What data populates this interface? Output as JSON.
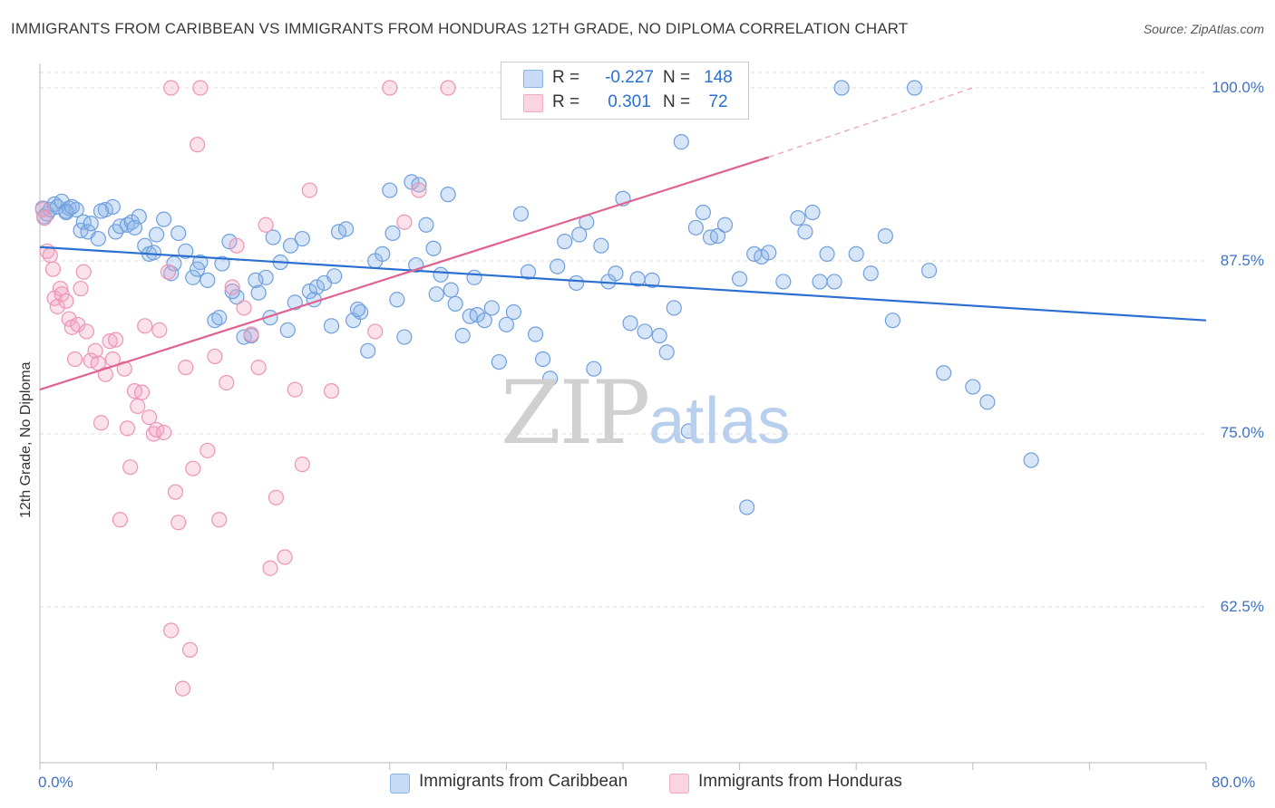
{
  "title": "IMMIGRANTS FROM CARIBBEAN VS IMMIGRANTS FROM HONDURAS 12TH GRADE, NO DIPLOMA CORRELATION CHART",
  "source": "Source: ZipAtlas.com",
  "watermark": {
    "zip": "ZIP",
    "atlas": "atlas"
  },
  "legend_stats": [
    {
      "r_label": "R =",
      "r_value": "-0.227",
      "n_label": "N =",
      "n_value": "148",
      "color": "#8ab4e8"
    },
    {
      "r_label": "R =",
      "r_value": "0.301",
      "n_label": "N =",
      "n_value": "72",
      "color": "#f2a9c2"
    }
  ],
  "chart_data": {
    "type": "scatter",
    "title": "IMMIGRANTS FROM CARIBBEAN VS IMMIGRANTS FROM HONDURAS 12TH GRADE, NO DIPLOMA CORRELATION CHART",
    "xlabel": "",
    "ylabel": "12th Grade, No Diploma",
    "xlim": [
      0,
      80
    ],
    "ylim": [
      50,
      102
    ],
    "x_tick_labels": [
      {
        "value": 0,
        "label": "0.0%"
      },
      {
        "value": 80,
        "label": "80.0%"
      }
    ],
    "y_tick_labels": [
      {
        "value": 100,
        "label": "100.0%"
      },
      {
        "value": 87.5,
        "label": "87.5%"
      },
      {
        "value": 75,
        "label": "75.0%"
      },
      {
        "value": 62.5,
        "label": "62.5%"
      }
    ],
    "grid": true,
    "legend_position": "bottom",
    "series": [
      {
        "name": "Immigrants from Caribbean",
        "color": "#8ab4e8",
        "line_color": "#2b6fd0",
        "trend": {
          "x": [
            0,
            80
          ],
          "y": [
            88.5,
            83.2
          ],
          "dashed_from": null
        },
        "points": [
          [
            0.2,
            91.3
          ],
          [
            0.3,
            90.7
          ],
          [
            0.5,
            90.9
          ],
          [
            0.7,
            91.2
          ],
          [
            1.0,
            91.6
          ],
          [
            1.2,
            91.4
          ],
          [
            1.5,
            91.8
          ],
          [
            1.8,
            91.1
          ],
          [
            2.0,
            91.3
          ],
          [
            2.5,
            91.2
          ],
          [
            2.8,
            89.7
          ],
          [
            3.0,
            90.3
          ],
          [
            3.3,
            89.6
          ],
          [
            4.0,
            89.1
          ],
          [
            4.5,
            91.2
          ],
          [
            5.0,
            91.4
          ],
          [
            5.2,
            89.6
          ],
          [
            5.5,
            90.0
          ],
          [
            6.0,
            90.1
          ],
          [
            6.3,
            90.3
          ],
          [
            6.8,
            90.7
          ],
          [
            7.2,
            88.6
          ],
          [
            7.5,
            88.0
          ],
          [
            8.0,
            89.4
          ],
          [
            8.5,
            90.5
          ],
          [
            9.0,
            86.6
          ],
          [
            9.5,
            89.5
          ],
          [
            10.0,
            88.2
          ],
          [
            10.5,
            86.3
          ],
          [
            11.0,
            87.4
          ],
          [
            11.5,
            86.1
          ],
          [
            12.0,
            83.2
          ],
          [
            12.3,
            83.4
          ],
          [
            12.5,
            87.3
          ],
          [
            13.0,
            88.9
          ],
          [
            13.5,
            84.9
          ],
          [
            14.0,
            82.0
          ],
          [
            14.5,
            82.1
          ],
          [
            15.0,
            85.2
          ],
          [
            15.5,
            86.3
          ],
          [
            16.0,
            89.2
          ],
          [
            16.5,
            87.4
          ],
          [
            17.0,
            82.5
          ],
          [
            17.5,
            84.5
          ],
          [
            18.0,
            89.1
          ],
          [
            18.5,
            85.3
          ],
          [
            19.0,
            85.6
          ],
          [
            19.5,
            85.9
          ],
          [
            20.0,
            82.8
          ],
          [
            20.5,
            89.6
          ],
          [
            21.0,
            89.8
          ],
          [
            21.5,
            83.2
          ],
          [
            22.0,
            83.8
          ],
          [
            22.5,
            81.0
          ],
          [
            23.0,
            87.5
          ],
          [
            23.5,
            88.0
          ],
          [
            24.0,
            92.6
          ],
          [
            24.5,
            84.7
          ],
          [
            25.0,
            82.0
          ],
          [
            25.5,
            93.2
          ],
          [
            26.0,
            93.0
          ],
          [
            26.5,
            90.1
          ],
          [
            27.0,
            88.4
          ],
          [
            27.5,
            86.5
          ],
          [
            28.0,
            92.3
          ],
          [
            28.5,
            84.4
          ],
          [
            29.0,
            82.1
          ],
          [
            29.5,
            83.5
          ],
          [
            30.0,
            83.6
          ],
          [
            30.5,
            83.2
          ],
          [
            31.0,
            84.1
          ],
          [
            31.5,
            80.2
          ],
          [
            32.0,
            82.9
          ],
          [
            32.5,
            83.8
          ],
          [
            33.0,
            90.9
          ],
          [
            33.5,
            86.7
          ],
          [
            34.0,
            82.2
          ],
          [
            34.5,
            80.4
          ],
          [
            35.0,
            79.0
          ],
          [
            35.5,
            87.1
          ],
          [
            36.0,
            88.9
          ],
          [
            36.8,
            85.9
          ],
          [
            37.0,
            89.4
          ],
          [
            37.5,
            90.3
          ],
          [
            38.0,
            79.7
          ],
          [
            38.5,
            88.6
          ],
          [
            39.0,
            86.0
          ],
          [
            39.5,
            86.6
          ],
          [
            40.0,
            92.0
          ],
          [
            40.5,
            83.0
          ],
          [
            41.0,
            86.2
          ],
          [
            41.5,
            82.4
          ],
          [
            42.0,
            86.1
          ],
          [
            42.5,
            82.1
          ],
          [
            43.0,
            80.9
          ],
          [
            43.5,
            84.1
          ],
          [
            44.0,
            96.1
          ],
          [
            44.5,
            75.2
          ],
          [
            45.0,
            89.9
          ],
          [
            45.5,
            91.0
          ],
          [
            46.0,
            89.2
          ],
          [
            46.5,
            89.3
          ],
          [
            47.0,
            90.1
          ],
          [
            48.0,
            86.2
          ],
          [
            48.5,
            69.7
          ],
          [
            49.0,
            88.0
          ],
          [
            49.5,
            87.8
          ],
          [
            50.0,
            88.1
          ],
          [
            51.0,
            86.0
          ],
          [
            52.0,
            90.6
          ],
          [
            52.5,
            89.6
          ],
          [
            53.0,
            91.0
          ],
          [
            53.5,
            86.0
          ],
          [
            54.0,
            88.0
          ],
          [
            54.5,
            86.0
          ],
          [
            55.0,
            100.0
          ],
          [
            56.0,
            88.0
          ],
          [
            57.0,
            86.6
          ],
          [
            58.0,
            89.3
          ],
          [
            58.5,
            83.2
          ],
          [
            60.0,
            100.0
          ],
          [
            61.0,
            86.8
          ],
          [
            62.0,
            79.4
          ],
          [
            64.0,
            78.4
          ],
          [
            65.0,
            77.3
          ],
          [
            68.0,
            73.1
          ],
          [
            1.8,
            91.0
          ],
          [
            2.2,
            91.4
          ],
          [
            3.5,
            90.2
          ],
          [
            4.2,
            91.1
          ],
          [
            6.5,
            89.9
          ],
          [
            7.8,
            88.1
          ],
          [
            9.2,
            87.3
          ],
          [
            10.8,
            86.9
          ],
          [
            13.2,
            85.3
          ],
          [
            14.8,
            86.1
          ],
          [
            15.8,
            83.4
          ],
          [
            17.2,
            88.6
          ],
          [
            18.8,
            84.7
          ],
          [
            20.2,
            86.4
          ],
          [
            21.8,
            84.0
          ],
          [
            24.2,
            89.5
          ],
          [
            25.8,
            87.2
          ],
          [
            27.2,
            85.1
          ],
          [
            28.2,
            85.4
          ],
          [
            29.8,
            86.3
          ]
        ]
      },
      {
        "name": "Immigrants from Honduras",
        "color": "#f2a9c2",
        "line_color": "#e0628f",
        "trend": {
          "x": [
            0,
            50
          ],
          "y": [
            78.2,
            95.0
          ],
          "dashed_to": [
            64,
            100.0
          ]
        },
        "points": [
          [
            0.2,
            91.2
          ],
          [
            0.3,
            90.6
          ],
          [
            0.5,
            88.2
          ],
          [
            0.7,
            87.9
          ],
          [
            0.9,
            86.9
          ],
          [
            1.0,
            84.8
          ],
          [
            1.2,
            84.2
          ],
          [
            1.4,
            85.5
          ],
          [
            1.5,
            85.1
          ],
          [
            1.8,
            84.6
          ],
          [
            2.0,
            83.3
          ],
          [
            2.2,
            82.7
          ],
          [
            2.4,
            80.4
          ],
          [
            2.6,
            82.9
          ],
          [
            2.8,
            85.5
          ],
          [
            3.0,
            86.7
          ],
          [
            3.2,
            82.4
          ],
          [
            3.5,
            80.3
          ],
          [
            3.8,
            81.0
          ],
          [
            4.0,
            80.1
          ],
          [
            4.2,
            75.8
          ],
          [
            4.5,
            79.3
          ],
          [
            4.8,
            81.7
          ],
          [
            5.0,
            80.4
          ],
          [
            5.2,
            81.8
          ],
          [
            5.5,
            68.8
          ],
          [
            5.8,
            79.7
          ],
          [
            6.0,
            75.4
          ],
          [
            6.2,
            72.6
          ],
          [
            6.5,
            78.1
          ],
          [
            6.7,
            77.0
          ],
          [
            7.0,
            78.0
          ],
          [
            7.2,
            82.8
          ],
          [
            7.5,
            76.2
          ],
          [
            7.8,
            75.0
          ],
          [
            8.0,
            75.3
          ],
          [
            8.2,
            82.5
          ],
          [
            8.5,
            75.1
          ],
          [
            8.8,
            86.7
          ],
          [
            9.0,
            60.8
          ],
          [
            9.3,
            70.8
          ],
          [
            9.5,
            68.6
          ],
          [
            9.8,
            56.6
          ],
          [
            10.0,
            79.8
          ],
          [
            10.3,
            59.4
          ],
          [
            10.5,
            72.5
          ],
          [
            10.8,
            95.9
          ],
          [
            11.0,
            100.0
          ],
          [
            11.5,
            73.8
          ],
          [
            12.0,
            80.6
          ],
          [
            12.3,
            68.8
          ],
          [
            12.8,
            78.7
          ],
          [
            13.2,
            85.6
          ],
          [
            13.5,
            88.6
          ],
          [
            14.0,
            84.1
          ],
          [
            14.5,
            82.2
          ],
          [
            15.0,
            79.8
          ],
          [
            15.5,
            90.1
          ],
          [
            15.8,
            65.3
          ],
          [
            16.2,
            70.4
          ],
          [
            16.8,
            66.1
          ],
          [
            17.5,
            78.2
          ],
          [
            18.0,
            72.8
          ],
          [
            18.5,
            92.6
          ],
          [
            20.0,
            78.1
          ],
          [
            23.0,
            82.4
          ],
          [
            25.0,
            90.3
          ],
          [
            26.0,
            92.6
          ],
          [
            9.0,
            100.0
          ],
          [
            24.0,
            100.0
          ],
          [
            28.0,
            100.0
          ],
          [
            42.5,
            100.0
          ]
        ]
      }
    ]
  },
  "axes": {
    "y_label": "12th Grade, No Diploma",
    "x_min_label": "0.0%",
    "x_max_label": "80.0%"
  },
  "bottom_legend": [
    {
      "label": "Immigrants from Caribbean",
      "color": "#8ab4e8"
    },
    {
      "label": "Immigrants from Honduras",
      "color": "#f2a9c2"
    }
  ]
}
